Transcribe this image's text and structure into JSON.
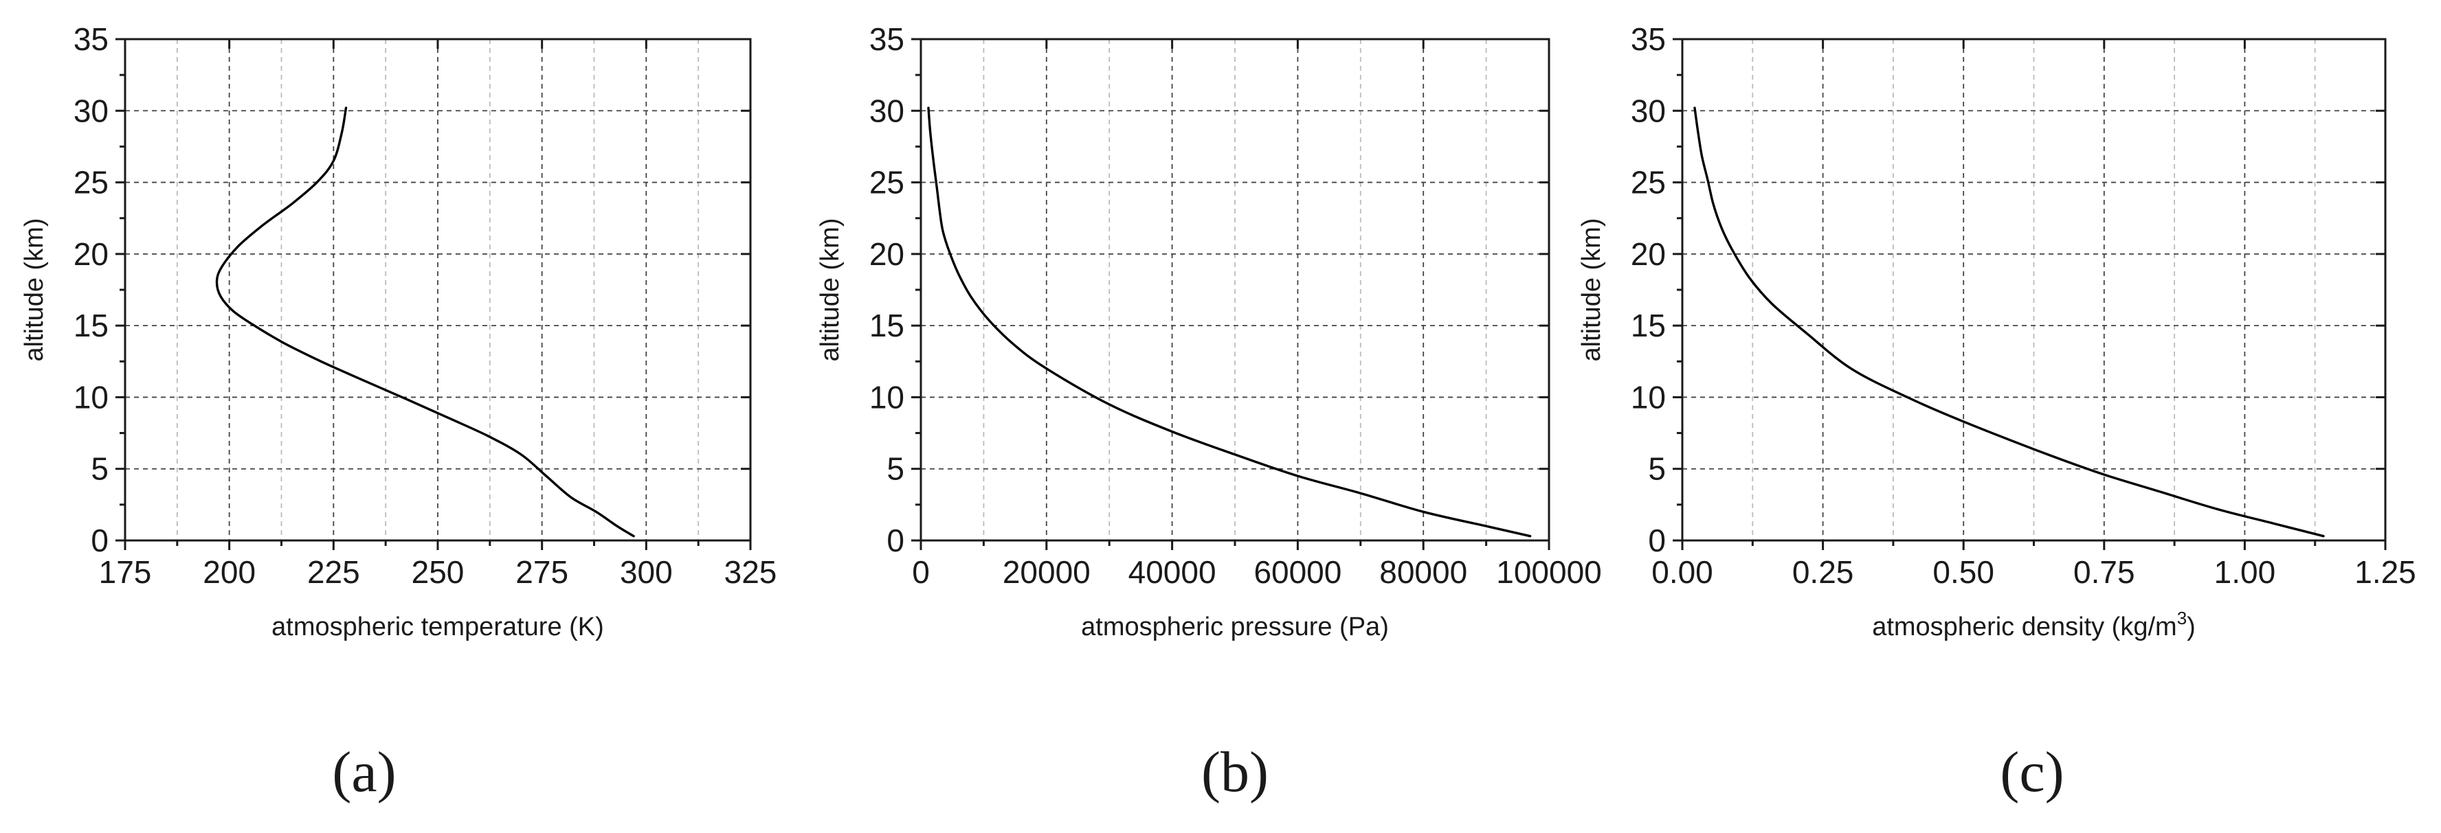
{
  "chart_data": [
    {
      "type": "line",
      "panel_label": "(a)",
      "xlabel": "atmospheric temperature (K)",
      "xlabel_sup": "",
      "xlabel_tail": "",
      "ylabel": "altitude (km)",
      "xlim": [
        175,
        325
      ],
      "ylim": [
        0,
        35
      ],
      "xticks": [
        175,
        200,
        225,
        250,
        275,
        300,
        325
      ],
      "xtick_labels": [
        "175",
        "200",
        "225",
        "250",
        "275",
        "300",
        "325"
      ],
      "yticks": [
        0,
        5,
        10,
        15,
        20,
        25,
        30,
        35
      ],
      "ytick_labels": [
        "0",
        "5",
        "10",
        "15",
        "20",
        "25",
        "30",
        "35"
      ],
      "grid": true,
      "series": [
        {
          "name": "temperature",
          "x": [
            297,
            293,
            288,
            282,
            276,
            270,
            262,
            253,
            243,
            232,
            222,
            213,
            206,
            201,
            198,
            197,
            198,
            202,
            208,
            215,
            221,
            225,
            227,
            228
          ],
          "y": [
            0.3,
            1,
            2,
            3,
            4.5,
            6,
            7.3,
            8.5,
            9.8,
            11.2,
            12.5,
            13.8,
            15,
            16,
            17,
            18,
            19,
            20.5,
            22,
            23.5,
            25,
            26.5,
            28.5,
            30.2
          ]
        }
      ]
    },
    {
      "type": "line",
      "panel_label": "(b)",
      "xlabel": "atmospheric pressure (Pa)",
      "xlabel_sup": "",
      "xlabel_tail": "",
      "ylabel": "altitude (km)",
      "xlim": [
        0,
        100000
      ],
      "ylim": [
        0,
        35
      ],
      "xticks": [
        0,
        20000,
        40000,
        60000,
        80000,
        100000
      ],
      "xtick_labels": [
        "0",
        "20000",
        "40000",
        "60000",
        "80000",
        "100000"
      ],
      "yticks": [
        0,
        5,
        10,
        15,
        20,
        25,
        30,
        35
      ],
      "ytick_labels": [
        "0",
        "5",
        "10",
        "15",
        "20",
        "25",
        "30",
        "35"
      ],
      "grid": true,
      "series": [
        {
          "name": "pressure",
          "x": [
            97000,
            90000,
            80000,
            70000,
            60000,
            50000,
            40000,
            30000,
            20000,
            15000,
            11000,
            8000,
            6000,
            4500,
            3500,
            3000,
            2500,
            2000,
            1500,
            1200
          ],
          "y": [
            0.3,
            1,
            2,
            3.3,
            4.5,
            6,
            7.6,
            9.5,
            12,
            13.6,
            15.3,
            17,
            18.6,
            20.2,
            21.6,
            23,
            24.8,
            26.5,
            28.5,
            30.2
          ]
        }
      ]
    },
    {
      "type": "line",
      "panel_label": "(c)",
      "xlabel": "atmospheric density (kg/m",
      "xlabel_sup": "3",
      "xlabel_tail": ")",
      "ylabel": "altitude (km)",
      "xlim": [
        0,
        1.25
      ],
      "ylim": [
        0,
        35
      ],
      "xticks": [
        0,
        0.25,
        0.5,
        0.75,
        1.0,
        1.25
      ],
      "xtick_labels": [
        "0.00",
        "0.25",
        "0.50",
        "0.75",
        "1.00",
        "1.25"
      ],
      "yticks": [
        0,
        5,
        10,
        15,
        20,
        25,
        30,
        35
      ],
      "ytick_labels": [
        "0",
        "5",
        "10",
        "15",
        "20",
        "25",
        "30",
        "35"
      ],
      "grid": true,
      "series": [
        {
          "name": "density",
          "x": [
            1.14,
            1.05,
            0.95,
            0.85,
            0.75,
            0.65,
            0.5,
            0.4,
            0.3,
            0.22,
            0.16,
            0.12,
            0.09,
            0.07,
            0.055,
            0.045,
            0.035,
            0.028,
            0.022
          ],
          "y": [
            0.3,
            1.2,
            2.2,
            3.4,
            4.6,
            6,
            8.3,
            10,
            12,
            14.5,
            16.5,
            18.3,
            20.2,
            21.8,
            23.5,
            25.2,
            26.8,
            28.5,
            30.2
          ]
        }
      ]
    }
  ]
}
